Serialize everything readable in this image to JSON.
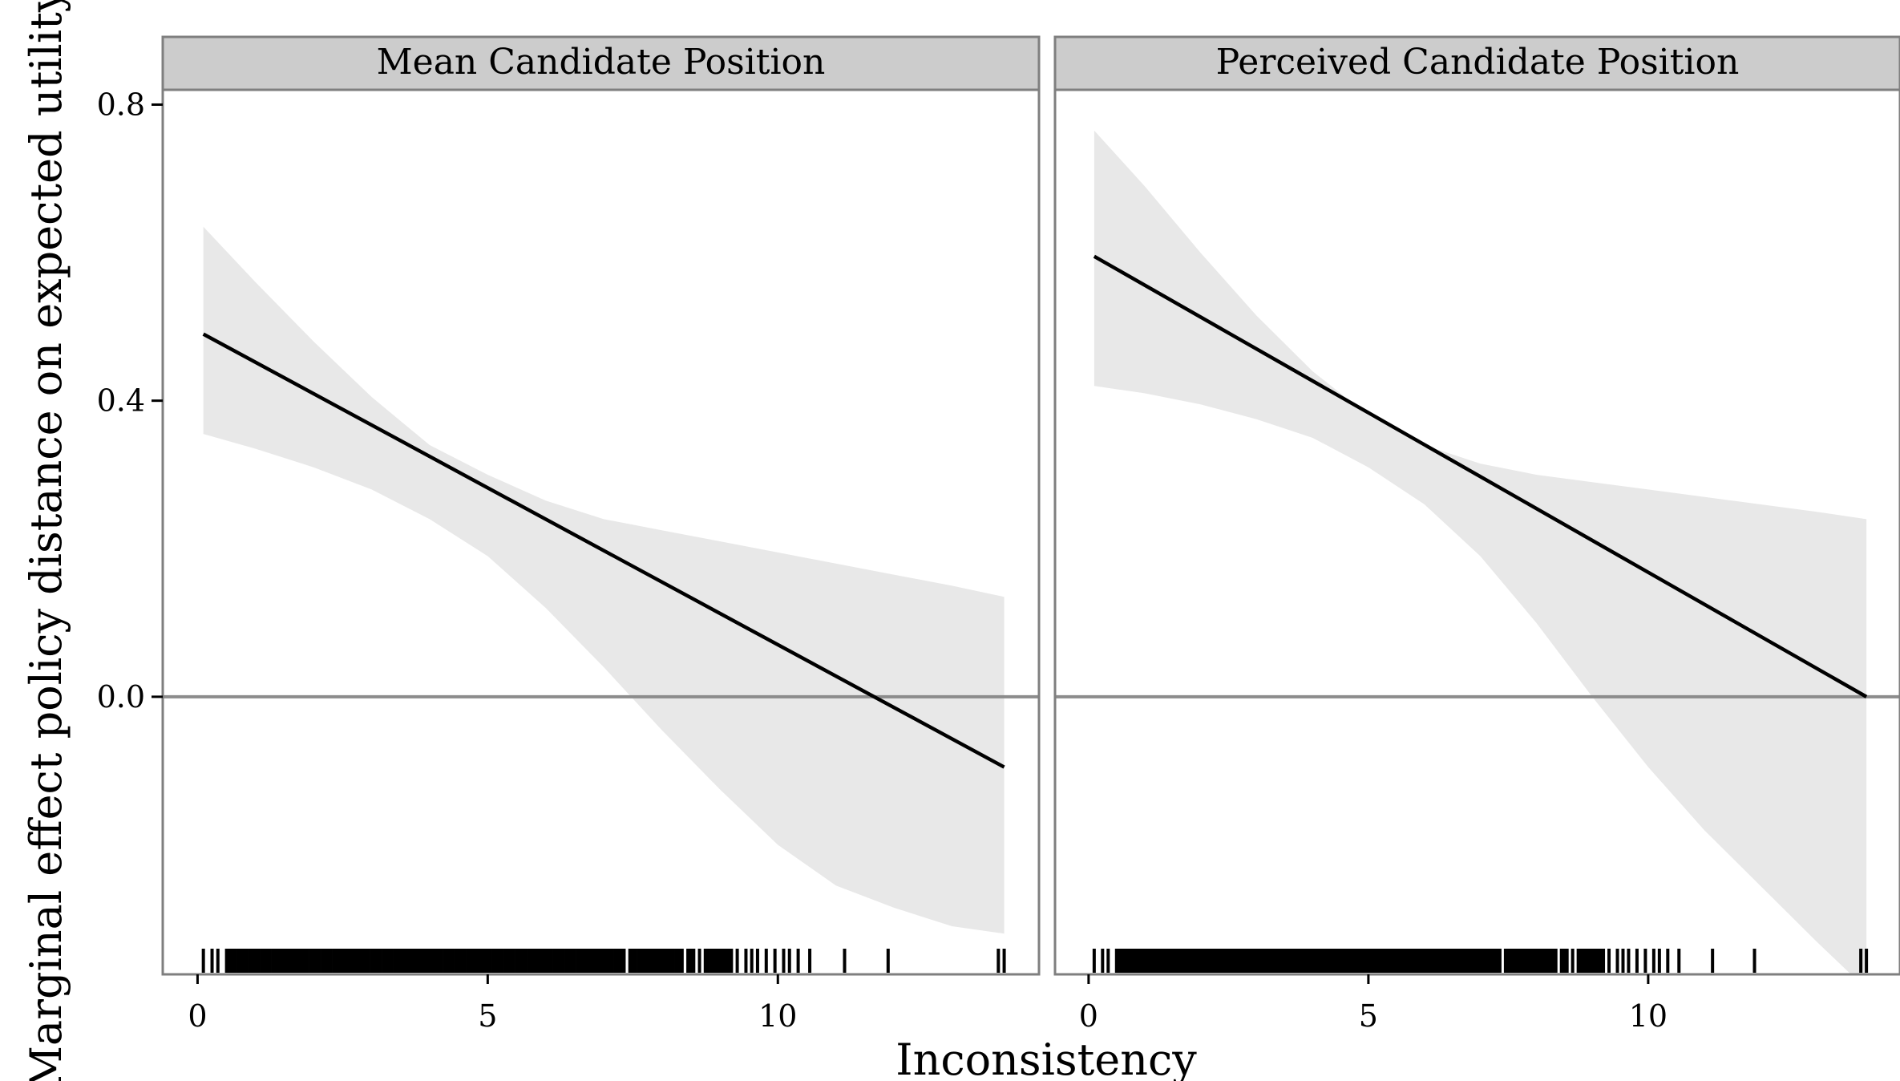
{
  "chart_data": {
    "type": "line",
    "xlabel": "Inconsistency",
    "ylabel": "Marginal effect policy distance on expected utility",
    "xlim": [
      -0.6,
      14.5
    ],
    "ylim": [
      -0.375,
      0.82
    ],
    "x_ticks": [
      0,
      5,
      10
    ],
    "x_tick_labels": [
      "0",
      "5",
      "10"
    ],
    "y_ticks": [
      0.8,
      0.4,
      0.0
    ],
    "y_tick_labels": [
      "0.8",
      "0.4",
      "0.0"
    ],
    "reference_line_y": 0.0,
    "colors": {
      "line": "#000000",
      "ribbon": "#e8e8e8",
      "strip_background": "#cccccc",
      "panel_border": "#7f7f7f",
      "zero_line": "#8c8c8c"
    },
    "panels": [
      {
        "title": "Mean Candidate Position",
        "series": {
          "x": [
            0.1,
            13.9
          ],
          "y": [
            0.49,
            -0.095
          ]
        },
        "ribbon": {
          "x": [
            0.1,
            1,
            2,
            3,
            4,
            5,
            6,
            7,
            8,
            9,
            10,
            11,
            12,
            13,
            13.9
          ],
          "lower": [
            0.355,
            0.335,
            0.31,
            0.28,
            0.24,
            0.19,
            0.12,
            0.04,
            -0.045,
            -0.125,
            -0.2,
            -0.255,
            -0.285,
            -0.31,
            -0.32
          ],
          "upper": [
            0.635,
            0.56,
            0.48,
            0.405,
            0.34,
            0.3,
            0.265,
            0.24,
            0.225,
            0.21,
            0.195,
            0.18,
            0.165,
            0.15,
            0.135
          ]
        },
        "rug": [
          0.1,
          0.25,
          0.35,
          0.5,
          0.55,
          0.6,
          0.65,
          0.7,
          0.75,
          0.8,
          0.85,
          0.9,
          0.95,
          1.0,
          1.05,
          1.1,
          1.15,
          1.2,
          1.25,
          1.3,
          1.35,
          1.4,
          1.45,
          1.5,
          1.55,
          1.6,
          1.65,
          1.7,
          1.75,
          1.8,
          1.85,
          1.9,
          1.95,
          2.0,
          2.05,
          2.1,
          2.15,
          2.2,
          2.25,
          2.3,
          2.35,
          2.4,
          2.45,
          2.5,
          2.55,
          2.6,
          2.65,
          2.7,
          2.75,
          2.8,
          2.85,
          2.9,
          2.95,
          3.0,
          3.05,
          3.1,
          3.15,
          3.2,
          3.25,
          3.3,
          3.35,
          3.4,
          3.45,
          3.5,
          3.55,
          3.6,
          3.65,
          3.7,
          3.75,
          3.8,
          3.85,
          3.9,
          3.95,
          4.0,
          4.05,
          4.1,
          4.15,
          4.2,
          4.25,
          4.3,
          4.35,
          4.4,
          4.45,
          4.5,
          4.55,
          4.6,
          4.65,
          4.7,
          4.75,
          4.8,
          4.85,
          4.9,
          4.95,
          5.0,
          5.05,
          5.1,
          5.15,
          5.2,
          5.25,
          5.3,
          5.35,
          5.4,
          5.45,
          5.5,
          5.55,
          5.6,
          5.65,
          5.7,
          5.75,
          5.8,
          5.85,
          5.9,
          5.95,
          6.0,
          6.05,
          6.1,
          6.15,
          6.2,
          6.25,
          6.3,
          6.35,
          6.4,
          6.45,
          6.5,
          6.55,
          6.6,
          6.65,
          6.7,
          6.75,
          6.8,
          6.85,
          6.9,
          6.95,
          7.0,
          7.05,
          7.1,
          7.15,
          7.2,
          7.25,
          7.3,
          7.35,
          7.45,
          7.5,
          7.55,
          7.6,
          7.65,
          7.7,
          7.75,
          7.8,
          7.85,
          7.9,
          7.95,
          8.0,
          8.05,
          8.1,
          8.15,
          8.2,
          8.25,
          8.3,
          8.35,
          8.45,
          8.5,
          8.55,
          8.65,
          8.75,
          8.8,
          8.85,
          8.9,
          8.95,
          9.0,
          9.05,
          9.1,
          9.15,
          9.2,
          9.3,
          9.45,
          9.55,
          9.65,
          9.8,
          9.95,
          10.1,
          10.2,
          10.35,
          10.55,
          11.15,
          11.9,
          13.8,
          13.9
        ]
      },
      {
        "title": "Perceived Candidate Position",
        "series": {
          "x": [
            0.1,
            13.9
          ],
          "y": [
            0.595,
            0.0
          ]
        },
        "ribbon": {
          "x": [
            0.1,
            1,
            2,
            3,
            4,
            5,
            6,
            7,
            8,
            9,
            10,
            11,
            12,
            13,
            13.9
          ],
          "lower": [
            0.42,
            0.41,
            0.395,
            0.375,
            0.35,
            0.31,
            0.26,
            0.19,
            0.1,
            0.0,
            -0.095,
            -0.18,
            -0.255,
            -0.33,
            -0.395
          ],
          "upper": [
            0.765,
            0.69,
            0.6,
            0.515,
            0.44,
            0.38,
            0.34,
            0.315,
            0.3,
            0.29,
            0.28,
            0.27,
            0.26,
            0.25,
            0.24
          ]
        },
        "rug": [
          0.1,
          0.25,
          0.35,
          0.5,
          0.55,
          0.6,
          0.65,
          0.7,
          0.75,
          0.8,
          0.85,
          0.9,
          0.95,
          1.0,
          1.05,
          1.1,
          1.15,
          1.2,
          1.25,
          1.3,
          1.35,
          1.4,
          1.45,
          1.5,
          1.55,
          1.6,
          1.65,
          1.7,
          1.75,
          1.8,
          1.85,
          1.9,
          1.95,
          2.0,
          2.05,
          2.1,
          2.15,
          2.2,
          2.25,
          2.3,
          2.35,
          2.4,
          2.45,
          2.5,
          2.55,
          2.6,
          2.65,
          2.7,
          2.75,
          2.8,
          2.85,
          2.9,
          2.95,
          3.0,
          3.05,
          3.1,
          3.15,
          3.2,
          3.25,
          3.3,
          3.35,
          3.4,
          3.45,
          3.5,
          3.55,
          3.6,
          3.65,
          3.7,
          3.75,
          3.8,
          3.85,
          3.9,
          3.95,
          4.0,
          4.05,
          4.1,
          4.15,
          4.2,
          4.25,
          4.3,
          4.35,
          4.4,
          4.45,
          4.5,
          4.55,
          4.6,
          4.65,
          4.7,
          4.75,
          4.8,
          4.85,
          4.9,
          4.95,
          5.0,
          5.05,
          5.1,
          5.15,
          5.2,
          5.25,
          5.3,
          5.35,
          5.4,
          5.45,
          5.5,
          5.55,
          5.6,
          5.65,
          5.7,
          5.75,
          5.8,
          5.85,
          5.9,
          5.95,
          6.0,
          6.05,
          6.1,
          6.15,
          6.2,
          6.25,
          6.3,
          6.35,
          6.4,
          6.45,
          6.5,
          6.55,
          6.6,
          6.65,
          6.7,
          6.75,
          6.8,
          6.85,
          6.9,
          6.95,
          7.0,
          7.05,
          7.1,
          7.15,
          7.2,
          7.25,
          7.3,
          7.35,
          7.45,
          7.5,
          7.55,
          7.6,
          7.65,
          7.7,
          7.75,
          7.8,
          7.85,
          7.9,
          7.95,
          8.0,
          8.05,
          8.1,
          8.15,
          8.2,
          8.25,
          8.3,
          8.35,
          8.45,
          8.5,
          8.55,
          8.65,
          8.75,
          8.8,
          8.85,
          8.9,
          8.95,
          9.0,
          9.05,
          9.1,
          9.15,
          9.2,
          9.3,
          9.45,
          9.55,
          9.65,
          9.8,
          9.95,
          10.1,
          10.2,
          10.35,
          10.55,
          11.15,
          11.9,
          13.8,
          13.9
        ]
      }
    ]
  }
}
